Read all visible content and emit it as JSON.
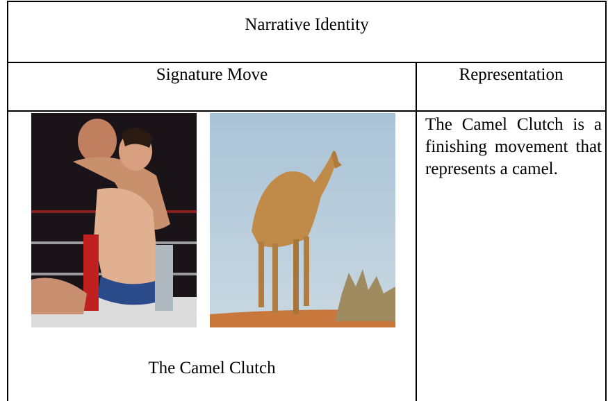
{
  "table": {
    "title": "Narrative Identity",
    "headers": [
      "Signature Move",
      "Representation"
    ],
    "rows": [
      [
        "The Camel Clutch",
        "The Camel Clutch is a finishing movement that represents a camel."
      ]
    ]
  }
}
